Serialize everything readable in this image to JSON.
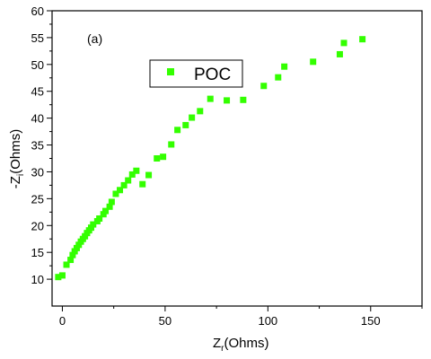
{
  "chart_data": {
    "type": "scatter",
    "panel_label": "(a)",
    "xlabel": {
      "main": "Z",
      "sub": "r",
      "rest": "(Ohms)"
    },
    "ylabel": {
      "pre": "-Z",
      "sub": "i",
      "rest": "(Ohms)"
    },
    "xlim": [
      -5,
      175
    ],
    "ylim": [
      5,
      60
    ],
    "xticks": [
      0,
      50,
      100,
      150
    ],
    "yticks": [
      10,
      15,
      20,
      25,
      30,
      35,
      40,
      45,
      50,
      55,
      60
    ],
    "grid": false,
    "legend_position": "top-center",
    "series": [
      {
        "name": "POC",
        "color": "#33ff00",
        "marker": "square",
        "x": [
          -2,
          0,
          2,
          4,
          5,
          6,
          7,
          8,
          9,
          10,
          11,
          12,
          13,
          14,
          15,
          17,
          18,
          20,
          21,
          23,
          24,
          26,
          28,
          30,
          32,
          34,
          36,
          39,
          42,
          46,
          49,
          53,
          56,
          60,
          63,
          67,
          72,
          80,
          88,
          98,
          105,
          108,
          122,
          135,
          137,
          146
        ],
        "y": [
          10.4,
          10.7,
          12.7,
          13.6,
          14.5,
          15.2,
          15.8,
          16.4,
          17.0,
          17.5,
          18.0,
          18.6,
          19.1,
          19.6,
          20.2,
          20.8,
          21.3,
          22.1,
          22.7,
          23.5,
          24.4,
          25.9,
          26.6,
          27.5,
          28.4,
          29.5,
          30.2,
          27.7,
          29.4,
          32.5,
          32.8,
          35.1,
          37.8,
          38.7,
          40.1,
          41.3,
          43.6,
          43.3,
          43.4,
          46.0,
          47.6,
          49.6,
          50.5,
          51.9,
          54.0,
          54.7
        ]
      }
    ]
  }
}
